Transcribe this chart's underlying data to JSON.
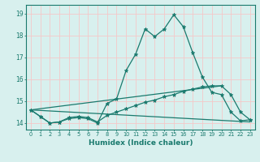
{
  "title": "",
  "xlabel": "Humidex (Indice chaleur)",
  "ylabel": "",
  "xlim": [
    -0.5,
    23.5
  ],
  "ylim": [
    13.7,
    19.4
  ],
  "xticks": [
    0,
    1,
    2,
    3,
    4,
    5,
    6,
    7,
    8,
    9,
    10,
    11,
    12,
    13,
    14,
    15,
    16,
    17,
    18,
    19,
    20,
    21,
    22,
    23
  ],
  "yticks": [
    14,
    15,
    16,
    17,
    18,
    19
  ],
  "bg_color": "#d8f0ee",
  "line_color": "#1a7a6e",
  "grid_color": "#f5c8c8",
  "lines": [
    {
      "x": [
        0,
        1,
        2,
        3,
        4,
        5,
        6,
        7,
        8,
        9,
        10,
        11,
        12,
        13,
        14,
        15,
        16,
        17,
        18,
        19,
        20,
        21,
        22,
        23
      ],
      "y": [
        14.6,
        14.3,
        14.0,
        14.05,
        14.2,
        14.25,
        14.2,
        14.0,
        14.9,
        15.1,
        16.4,
        17.15,
        18.3,
        17.95,
        18.3,
        18.95,
        18.4,
        17.2,
        16.1,
        15.4,
        15.3,
        14.5,
        14.1,
        14.15
      ],
      "marker": true
    },
    {
      "x": [
        0,
        1,
        2,
        3,
        4,
        5,
        6,
        7,
        8,
        9,
        10,
        11,
        12,
        13,
        14,
        15,
        16,
        17,
        18,
        19,
        20,
        21,
        22,
        23
      ],
      "y": [
        14.6,
        14.3,
        14.0,
        14.05,
        14.25,
        14.3,
        14.25,
        14.05,
        14.35,
        14.5,
        14.65,
        14.8,
        14.95,
        15.05,
        15.2,
        15.3,
        15.45,
        15.55,
        15.65,
        15.7,
        15.7,
        15.3,
        14.5,
        14.15
      ],
      "marker": true
    },
    {
      "x": [
        0,
        23
      ],
      "y": [
        14.6,
        14.05
      ],
      "marker": false
    },
    {
      "x": [
        0,
        20
      ],
      "y": [
        14.6,
        15.7
      ],
      "marker": false
    }
  ]
}
